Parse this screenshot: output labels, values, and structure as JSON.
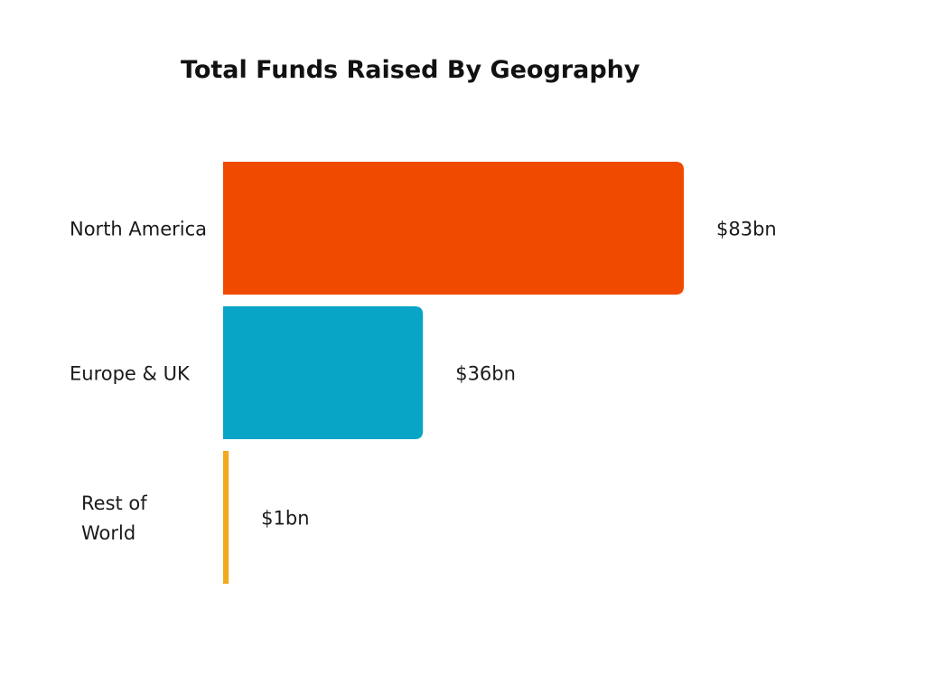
{
  "chart_data": {
    "type": "bar",
    "orientation": "horizontal",
    "title": "Total Funds Raised By Geography",
    "xlabel": "",
    "ylabel": "",
    "categories": [
      "North America",
      "Europe & UK",
      "Rest of World"
    ],
    "category_lines": [
      [
        "North America"
      ],
      [
        "Europe & UK"
      ],
      [
        "Rest of",
        "World"
      ]
    ],
    "values": [
      83,
      36,
      1
    ],
    "value_labels": [
      "$83bn",
      "$36bn",
      "$1bn"
    ],
    "unit": "$bn",
    "colors": [
      "#F04A00",
      "#08A5C6",
      "#F2A81D"
    ],
    "xlim": [
      0,
      83
    ],
    "grid": false,
    "legend": "none"
  }
}
